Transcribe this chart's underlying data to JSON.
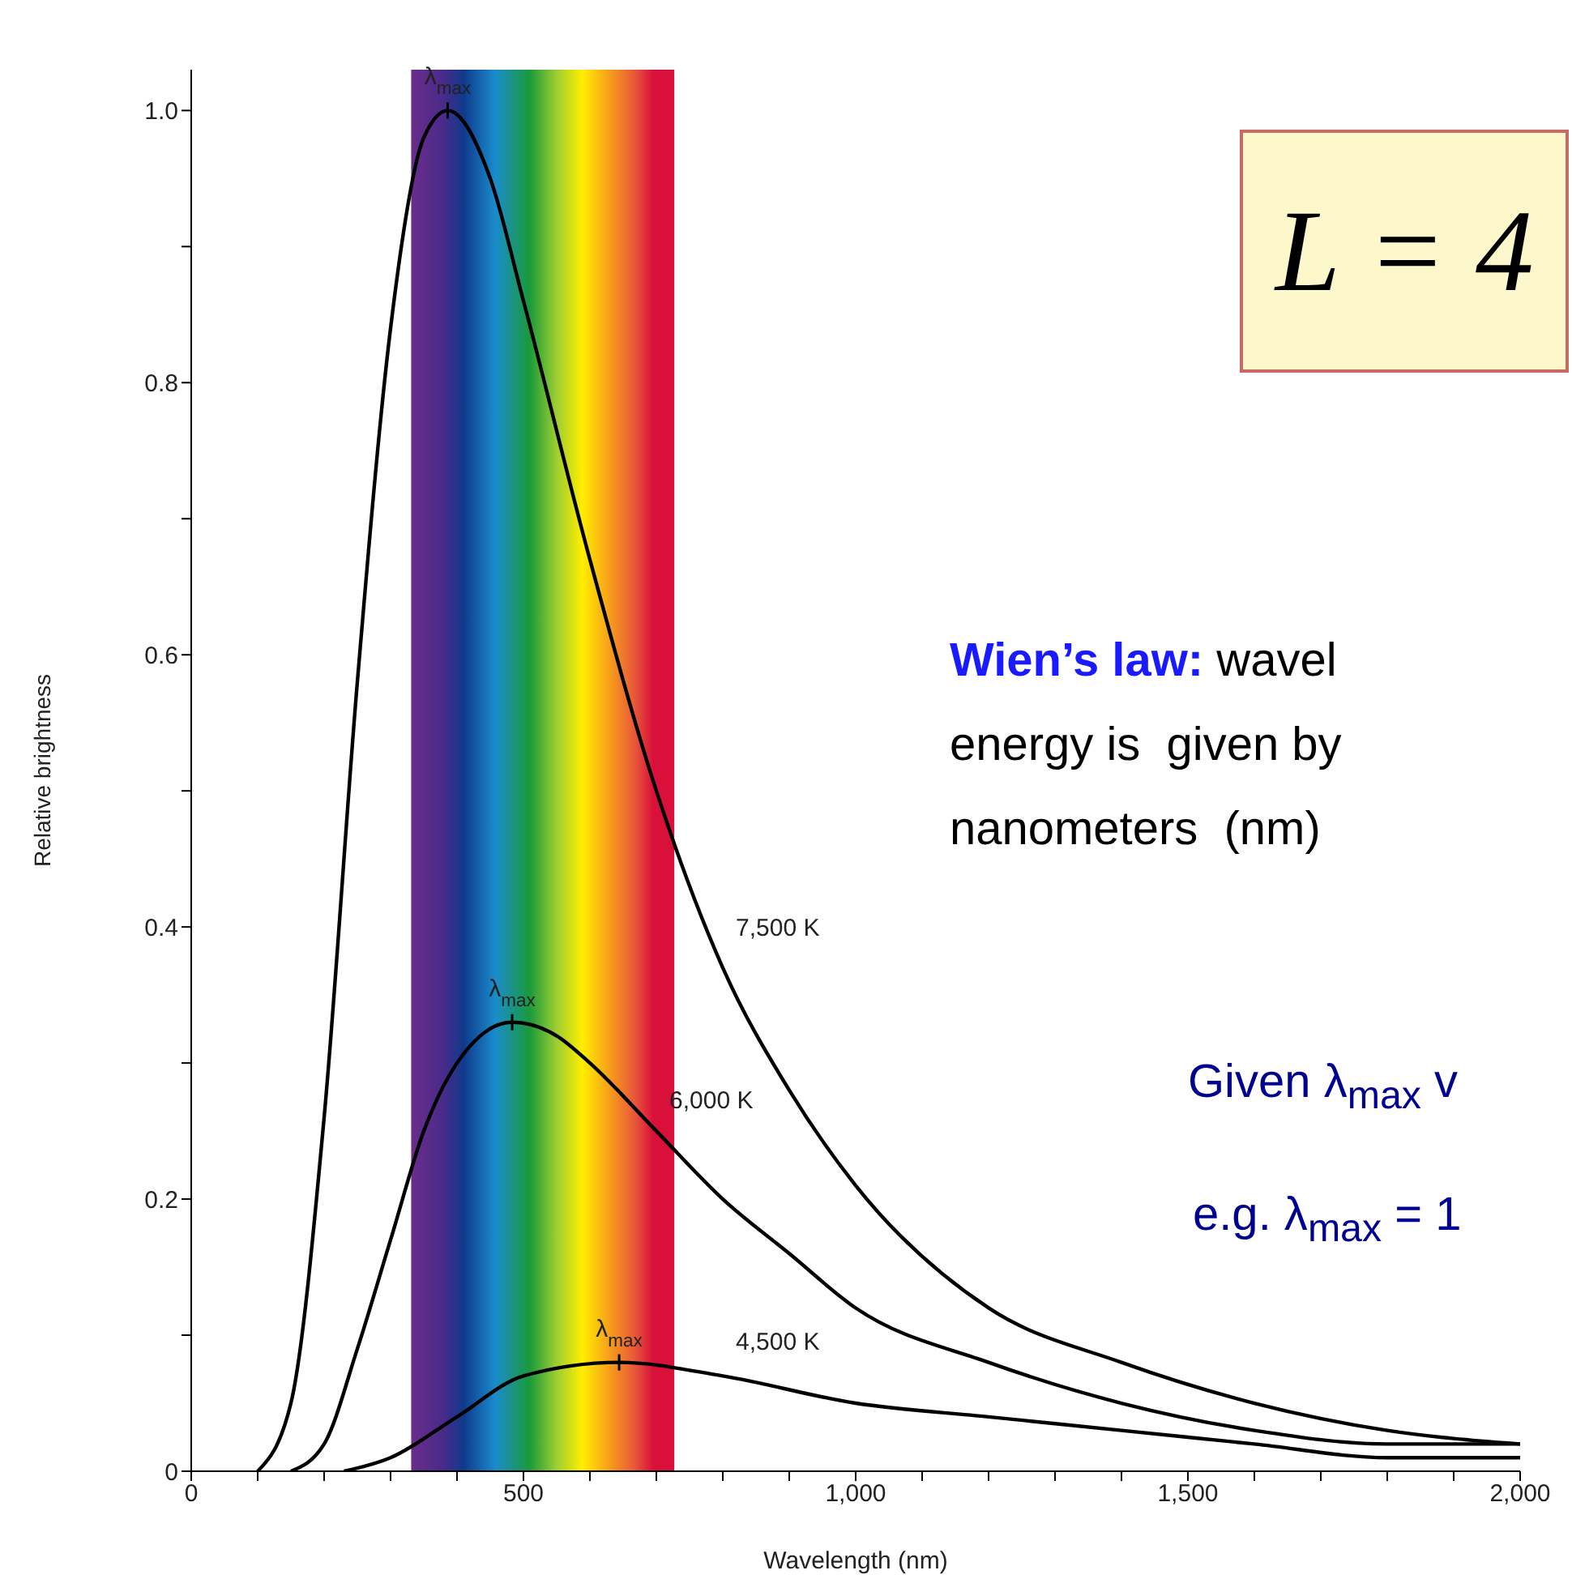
{
  "chart_data": {
    "type": "line",
    "xlabel": "Wavelength (nm)",
    "ylabel": "Relative brightness",
    "xlim": [
      0,
      2000
    ],
    "ylim": [
      0,
      1.03
    ],
    "xticks": [
      0,
      {
        "value": 100,
        "label": null
      },
      {
        "value": 200,
        "label": null
      },
      {
        "value": 300,
        "label": null
      },
      {
        "value": 400,
        "label": null
      },
      500,
      {
        "value": 600,
        "label": null
      },
      {
        "value": 700,
        "label": null
      },
      {
        "value": 800,
        "label": null
      },
      {
        "value": 900,
        "label": null
      },
      {
        "value": 1000,
        "label": "1,000"
      },
      {
        "value": 1100,
        "label": null
      },
      {
        "value": 1200,
        "label": null
      },
      {
        "value": 1300,
        "label": null
      },
      {
        "value": 1400,
        "label": null
      },
      {
        "value": 1500,
        "label": "1,500"
      },
      {
        "value": 1600,
        "label": null
      },
      {
        "value": 1700,
        "label": null
      },
      {
        "value": 1800,
        "label": null
      },
      {
        "value": 1900,
        "label": null
      },
      {
        "value": 2000,
        "label": "2,000"
      }
    ],
    "yticks": [
      0,
      {
        "value": 0.1,
        "label": null
      },
      0.2,
      {
        "value": 0.3,
        "label": null
      },
      0.4,
      {
        "value": 0.5,
        "label": null
      },
      0.6,
      {
        "value": 0.7,
        "label": null
      },
      0.8,
      {
        "value": 0.9,
        "label": null
      },
      {
        "value": 1,
        "label": "1.0"
      }
    ],
    "marker": "none",
    "line_style": "solid",
    "bands": [
      {
        "axis": "x",
        "from": 331,
        "to": 727
      }
    ],
    "series": [
      {
        "name": "7,500 K",
        "color": "#000000",
        "x": [
          100,
          150,
          200,
          250,
          300,
          350,
          386,
          450,
          500,
          600,
          700,
          800,
          900,
          1000,
          1200,
          1400,
          1600,
          1800,
          2000
        ],
        "values": [
          0,
          0.05,
          0.26,
          0.58,
          0.84,
          0.98,
          1.0,
          0.95,
          0.86,
          0.67,
          0.5,
          0.37,
          0.28,
          0.21,
          0.12,
          0.08,
          0.05,
          0.03,
          0.02
        ]
      },
      {
        "name": "6,000 K",
        "color": "#000000",
        "x": [
          150,
          200,
          250,
          300,
          350,
          400,
          483,
          550,
          600,
          700,
          800,
          900,
          1000,
          1200,
          1400,
          1600,
          1800,
          2000
        ],
        "values": [
          0,
          0.02,
          0.09,
          0.17,
          0.25,
          0.3,
          0.33,
          0.32,
          0.3,
          0.25,
          0.2,
          0.16,
          0.12,
          0.08,
          0.05,
          0.03,
          0.02,
          0.02
        ]
      },
      {
        "name": "4,500 K",
        "color": "#000000",
        "x": [
          230,
          300,
          400,
          500,
          644,
          800,
          1000,
          1200,
          1400,
          1600,
          1800,
          2000
        ],
        "values": [
          0,
          0.01,
          0.04,
          0.07,
          0.08,
          0.07,
          0.05,
          0.04,
          0.03,
          0.02,
          0.01,
          0.01
        ]
      }
    ],
    "annotations": [
      {
        "text": "λ$_{max}$",
        "x": 386,
        "y": 1.0
      },
      {
        "text": "λ$_{max}$",
        "x": 483,
        "y": 0.33
      },
      {
        "text": "λ$_{max}$",
        "x": 644,
        "y": 0.08
      },
      "L = 4",
      "Wien’s law: wavel",
      "energy is  given by",
      "nanometers  (nm)",
      "Given λ$_{max}$ v",
      "e.g. λ$_{max}$ = 1"
    ]
  }
}
